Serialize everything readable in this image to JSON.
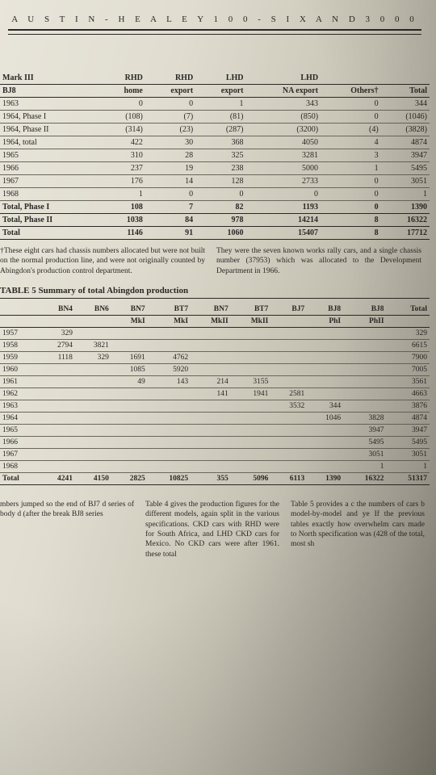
{
  "running_head": "A U S T I N - H E A L E Y   1 0 0 - S I X   A N D   3 0 0 0",
  "table1": {
    "headers_line1": [
      "Mark III",
      "RHD",
      "RHD",
      "LHD",
      "LHD",
      "",
      ""
    ],
    "headers_line2": [
      "BJ8",
      "home",
      "export",
      "export",
      "NA export",
      "Others†",
      "Total"
    ],
    "rows": [
      {
        "label": "1963",
        "cells": [
          "0",
          "0",
          "1",
          "343",
          "0",
          "344"
        ]
      },
      {
        "label": "1964, Phase I",
        "cells": [
          "(108)",
          "(7)",
          "(81)",
          "(850)",
          "0",
          "(1046)"
        ]
      },
      {
        "label": "1964, Phase II",
        "cells": [
          "(314)",
          "(23)",
          "(287)",
          "(3200)",
          "(4)",
          "(3828)"
        ]
      },
      {
        "label": "1964, total",
        "cells": [
          "422",
          "30",
          "368",
          "4050",
          "4",
          "4874"
        ]
      },
      {
        "label": "1965",
        "cells": [
          "310",
          "28",
          "325",
          "3281",
          "3",
          "3947"
        ]
      },
      {
        "label": "1966",
        "cells": [
          "237",
          "19",
          "238",
          "5000",
          "1",
          "5495"
        ]
      },
      {
        "label": "1967",
        "cells": [
          "176",
          "14",
          "128",
          "2733",
          "0",
          "3051"
        ]
      },
      {
        "label": "1968",
        "cells": [
          "1",
          "0",
          "0",
          "0",
          "0",
          "1"
        ]
      }
    ],
    "totals": [
      {
        "label": "Total, Phase I",
        "cells": [
          "108",
          "7",
          "82",
          "1193",
          "0",
          "1390"
        ]
      },
      {
        "label": "Total, Phase II",
        "cells": [
          "1038",
          "84",
          "978",
          "14214",
          "8",
          "16322"
        ]
      },
      {
        "label": "Total",
        "cells": [
          "1146",
          "91",
          "1060",
          "15407",
          "8",
          "17712"
        ]
      }
    ]
  },
  "note_left": "†These eight cars had chassis numbers allocated but were not built on the normal production line, and were not originally counted by Abingdon's production control department.",
  "note_right": "They were the seven known works rally cars, and a single chassis number (37953) which was allocated to the Development Department in 1966.",
  "table5_title": "TABLE 5  Summary of total Abingdon production",
  "table2": {
    "headers_line1": [
      "",
      "BN4",
      "BN6",
      "BN7",
      "BT7",
      "BN7",
      "BT7",
      "BJ7",
      "BJ8",
      "BJ8",
      "Total"
    ],
    "headers_line2": [
      "",
      "",
      "",
      "MkI",
      "MkI",
      "MkII",
      "MkII",
      "",
      "PhI",
      "PhII",
      ""
    ],
    "rows": [
      {
        "label": "1957",
        "cells": [
          "329",
          "",
          "",
          "",
          "",
          "",
          "",
          "",
          "",
          "329"
        ]
      },
      {
        "label": "1958",
        "cells": [
          "2794",
          "3821",
          "",
          "",
          "",
          "",
          "",
          "",
          "",
          "6615"
        ]
      },
      {
        "label": "1959",
        "cells": [
          "1118",
          "329",
          "1691",
          "4762",
          "",
          "",
          "",
          "",
          "",
          "7900"
        ]
      },
      {
        "label": "1960",
        "cells": [
          "",
          "",
          "1085",
          "5920",
          "",
          "",
          "",
          "",
          "",
          "7005"
        ]
      },
      {
        "label": "1961",
        "cells": [
          "",
          "",
          "49",
          "143",
          "214",
          "3155",
          "",
          "",
          "",
          "3561"
        ]
      },
      {
        "label": "1962",
        "cells": [
          "",
          "",
          "",
          "",
          "141",
          "1941",
          "2581",
          "",
          "",
          "4663"
        ]
      },
      {
        "label": "1963",
        "cells": [
          "",
          "",
          "",
          "",
          "",
          "",
          "3532",
          "344",
          "",
          "3876"
        ]
      },
      {
        "label": "1964",
        "cells": [
          "",
          "",
          "",
          "",
          "",
          "",
          "",
          "1046",
          "3828",
          "4874"
        ]
      },
      {
        "label": "1965",
        "cells": [
          "",
          "",
          "",
          "",
          "",
          "",
          "",
          "",
          "3947",
          "3947"
        ]
      },
      {
        "label": "1966",
        "cells": [
          "",
          "",
          "",
          "",
          "",
          "",
          "",
          "",
          "5495",
          "5495"
        ]
      },
      {
        "label": "1967",
        "cells": [
          "",
          "",
          "",
          "",
          "",
          "",
          "",
          "",
          "3051",
          "3051"
        ]
      },
      {
        "label": "1968",
        "cells": [
          "",
          "",
          "",
          "",
          "",
          "",
          "",
          "",
          "1",
          "1"
        ]
      }
    ],
    "total": {
      "label": "Total",
      "cells": [
        "4241",
        "4150",
        "2825",
        "10825",
        "355",
        "5096",
        "6113",
        "1390",
        "16322",
        "51317"
      ]
    }
  },
  "col_left": "mbers jumped so the end of BJ7 d series of body d (after the break  BJ8 series",
  "col_mid": "Table 4 gives the production figures for the different models, again split in the various specifications. CKD cars with RHD were for South Africa, and LHD CKD cars for Mexico. No CKD cars were after 1961.    these  total",
  "col_right": "Table 5 provides a c the numbers of cars b model-by-model and ye  If the previous tables exactly how overwhelm cars made to North specification was (428 of the total, most sh"
}
